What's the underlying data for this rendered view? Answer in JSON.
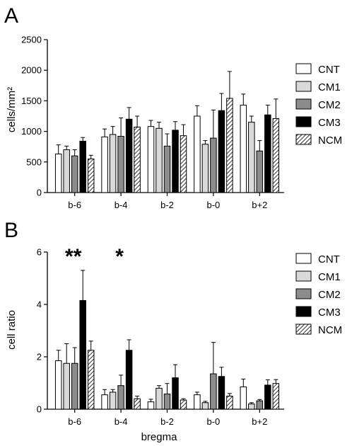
{
  "series_style": [
    {
      "name": "CNT",
      "fill": "#ffffff"
    },
    {
      "name": "CM1",
      "fill": "#d9d9d9"
    },
    {
      "name": "CM2",
      "fill": "#8c8c8c"
    },
    {
      "name": "CM3",
      "fill": "#000000"
    },
    {
      "name": "NCM",
      "fill": "hatch"
    }
  ],
  "chart_data": [
    {
      "panel": "A",
      "type": "bar",
      "ylabel": "cells/mm²",
      "xlabel": "",
      "categories": [
        "b-6",
        "b-4",
        "b-2",
        "b-0",
        "b+2"
      ],
      "ylim": [
        0,
        2500
      ],
      "yticks": [
        "0",
        "500",
        "1000",
        "1500",
        "2000",
        "2500"
      ],
      "legend_position": "right",
      "series": [
        {
          "name": "CNT",
          "values": [
            630,
            910,
            1080,
            1250,
            1430
          ],
          "errors": [
            150,
            130,
            100,
            170,
            180
          ]
        },
        {
          "name": "CM1",
          "values": [
            700,
            950,
            1050,
            790,
            1150
          ],
          "errors": [
            60,
            130,
            100,
            60,
            100
          ]
        },
        {
          "name": "CM2",
          "values": [
            600,
            920,
            760,
            890,
            680
          ],
          "errors": [
            100,
            300,
            200,
            460,
            170
          ]
        },
        {
          "name": "CM3",
          "values": [
            840,
            1200,
            1020,
            1340,
            1270
          ],
          "errors": [
            60,
            190,
            140,
            280,
            160
          ]
        },
        {
          "name": "NCM",
          "values": [
            550,
            1070,
            930,
            1540,
            1210
          ],
          "errors": [
            60,
            180,
            180,
            440,
            320
          ]
        }
      ],
      "annotations": []
    },
    {
      "panel": "B",
      "type": "bar",
      "ylabel": "cell ratio",
      "xlabel": "bregma",
      "categories": [
        "b-6",
        "b-4",
        "b-2",
        "b-0",
        "b+2"
      ],
      "ylim": [
        0,
        6
      ],
      "yticks": [
        "0",
        "2",
        "4",
        "6"
      ],
      "legend_position": "right",
      "series": [
        {
          "name": "CNT",
          "values": [
            1.85,
            0.55,
            0.28,
            0.55,
            0.85
          ],
          "errors": [
            0.4,
            0.2,
            0.1,
            0.1,
            0.3
          ]
        },
        {
          "name": "CM1",
          "values": [
            1.75,
            0.65,
            0.8,
            0.25,
            0.2
          ],
          "errors": [
            0.75,
            0.1,
            0.1,
            0.05,
            0.05
          ]
        },
        {
          "name": "CM2",
          "values": [
            1.75,
            0.9,
            0.58,
            1.35,
            0.32
          ],
          "errors": [
            0.6,
            0.4,
            0.4,
            1.2,
            0.05
          ]
        },
        {
          "name": "CM3",
          "values": [
            4.15,
            2.25,
            1.2,
            1.25,
            0.92
          ],
          "errors": [
            1.15,
            0.4,
            0.5,
            0.35,
            0.2
          ]
        },
        {
          "name": "NCM",
          "values": [
            2.25,
            0.4,
            0.35,
            0.5,
            0.98
          ],
          "errors": [
            0.35,
            0.1,
            0.05,
            0.1,
            0.15
          ]
        }
      ],
      "annotations": [
        {
          "text": "**",
          "category": "b-6"
        },
        {
          "text": "*",
          "category": "b-4"
        }
      ]
    }
  ]
}
